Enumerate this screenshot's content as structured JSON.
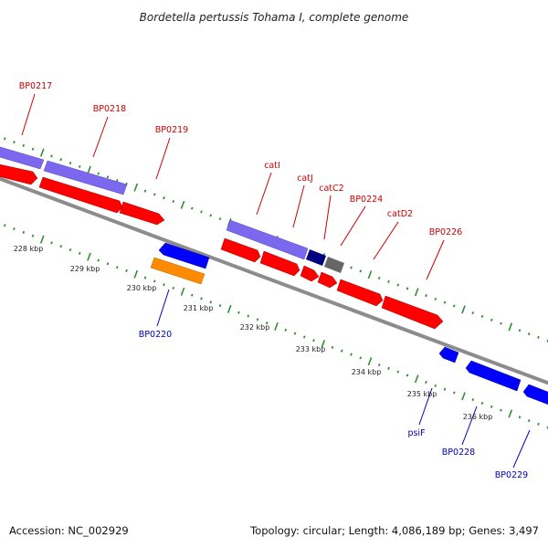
{
  "title": "Bordetella pertussis Tohama I, complete genome",
  "footer": {
    "accession": "Accession: NC_002929",
    "summary": "Topology: circular; Length: 4,086,189 bp; Genes: 3,497"
  },
  "colors": {
    "forward_label": "#cc0000",
    "reverse_label": "#0000bb",
    "backbone": "#8c8c8c",
    "ticks": "#2f8f2f",
    "cds_forward": "#ff0000",
    "cds_reverse": "#0000ff",
    "gene_track": "#7b68ee",
    "misc_feature": "#ff8c00",
    "dark_feature": "#000080",
    "grey_feature": "#666666"
  },
  "kbp_ticks": [
    "228 kbp",
    "229 kbp",
    "230 kbp",
    "231 kbp",
    "232 kbp",
    "233 kbp",
    "234 kbp",
    "235 kbp",
    "236 kbp"
  ],
  "gene_labels_forward": [
    "BP0217",
    "BP0218",
    "BP0219",
    "catI",
    "catJ",
    "catC2",
    "BP0224",
    "catD2",
    "BP0226"
  ],
  "gene_labels_reverse": [
    "BP0220",
    "psiF",
    "BP0228",
    "BP0229"
  ]
}
